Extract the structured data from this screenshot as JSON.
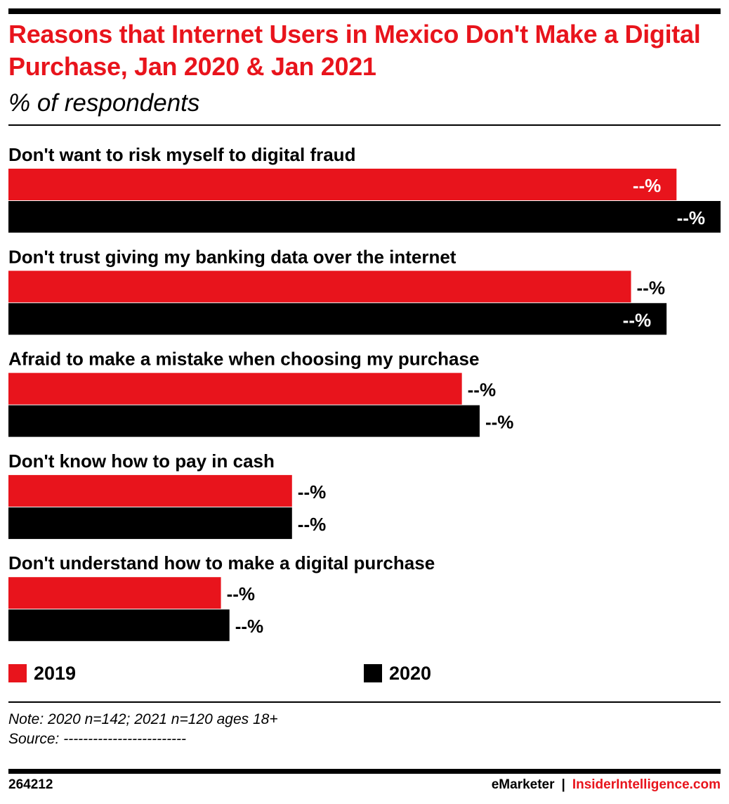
{
  "title": "Reasons that Internet Users in Mexico Don't Make a Digital Purchase, Jan 2020 & Jan 2021",
  "subtitle": "% of respondents",
  "colors": {
    "red": "#e8141c",
    "black": "#000000"
  },
  "chart_data": {
    "type": "bar",
    "orientation": "horizontal",
    "categories": [
      "Don't want to risk myself to digital fraud",
      "Don't trust giving my banking data over the internet",
      "Afraid to make a mistake when choosing my purchase",
      "Don't know how to pay in cash",
      "Don't understand how to make a digital purchase"
    ],
    "series": [
      {
        "name": "2019",
        "color": "#e8141c",
        "values": [
          94,
          87.6,
          63.8,
          39.9,
          29.9
        ],
        "labels": [
          "--%",
          "--%",
          "--%",
          "--%",
          "--%"
        ]
      },
      {
        "name": "2020",
        "color": "#000000",
        "values": [
          100.2,
          92.6,
          66.3,
          39.9,
          31.1
        ],
        "labels": [
          "--%",
          "--%",
          "--%",
          "--%",
          "--%"
        ]
      }
    ],
    "xlim": [
      0,
      100
    ],
    "grid": false,
    "legend": "bottom"
  },
  "legend": [
    {
      "label": "2019",
      "color": "#e8141c"
    },
    {
      "label": "2020",
      "color": "#000000"
    }
  ],
  "note": "Note: 2020 n=142; 2021 n=120 ages 18+",
  "source": "Source: -------------------------",
  "footer": {
    "id": "264212",
    "brand": "eMarketer",
    "separator": "|",
    "site": "InsiderIntelligence.com"
  }
}
